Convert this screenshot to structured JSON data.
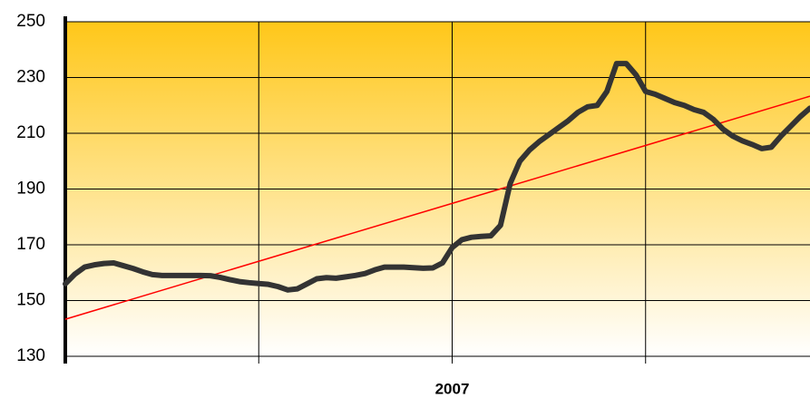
{
  "chart_data": {
    "type": "line",
    "categories": [
      null,
      null,
      null,
      null,
      null,
      null,
      null,
      null,
      null,
      null,
      null,
      null,
      null,
      null,
      null,
      null,
      null,
      null,
      null,
      null,
      null,
      null,
      null,
      null,
      null,
      null,
      null,
      null,
      null,
      null,
      null,
      null,
      null,
      null,
      null,
      null,
      null,
      null,
      null,
      null,
      "2007",
      null,
      null,
      null,
      null,
      null,
      null,
      null,
      null,
      null,
      null,
      null,
      null,
      null,
      null,
      null,
      null,
      null,
      null,
      null,
      null,
      null,
      null,
      null,
      null,
      null,
      null,
      null,
      null,
      null,
      null,
      null,
      null,
      null,
      null,
      null,
      null,
      null
    ],
    "series": [
      {
        "color": "#333333",
        "values": [
          156,
          159.5,
          162,
          162.8,
          163.3,
          163.5,
          162.5,
          161.5,
          160.3,
          159.3,
          159,
          159,
          159,
          159,
          159,
          158.9,
          158.3,
          157.5,
          156.8,
          156.4,
          156.1,
          155.8,
          155,
          153.8,
          154.2,
          156,
          157.8,
          158.2,
          158,
          158.5,
          159,
          159.7,
          161,
          162,
          162,
          162,
          161.8,
          161.6,
          161.7,
          163.5,
          169,
          171.8,
          172.7,
          173,
          173.2,
          177,
          192,
          200,
          204,
          207,
          209.5,
          212,
          214.5,
          217.5,
          219.5,
          220,
          225,
          235,
          235,
          231,
          225,
          224,
          222.5,
          221,
          220,
          218.5,
          217.5,
          215,
          211.5,
          209,
          207.3,
          206,
          204.5,
          205,
          209,
          212.5,
          216,
          219
        ]
      }
    ],
    "trendline": {
      "color": "#ff0000",
      "start": 143.3,
      "end": 223.3
    },
    "ylim": [
      130,
      250
    ],
    "yticks": [
      130,
      150,
      170,
      190,
      210,
      230,
      250
    ],
    "grid": true
  }
}
